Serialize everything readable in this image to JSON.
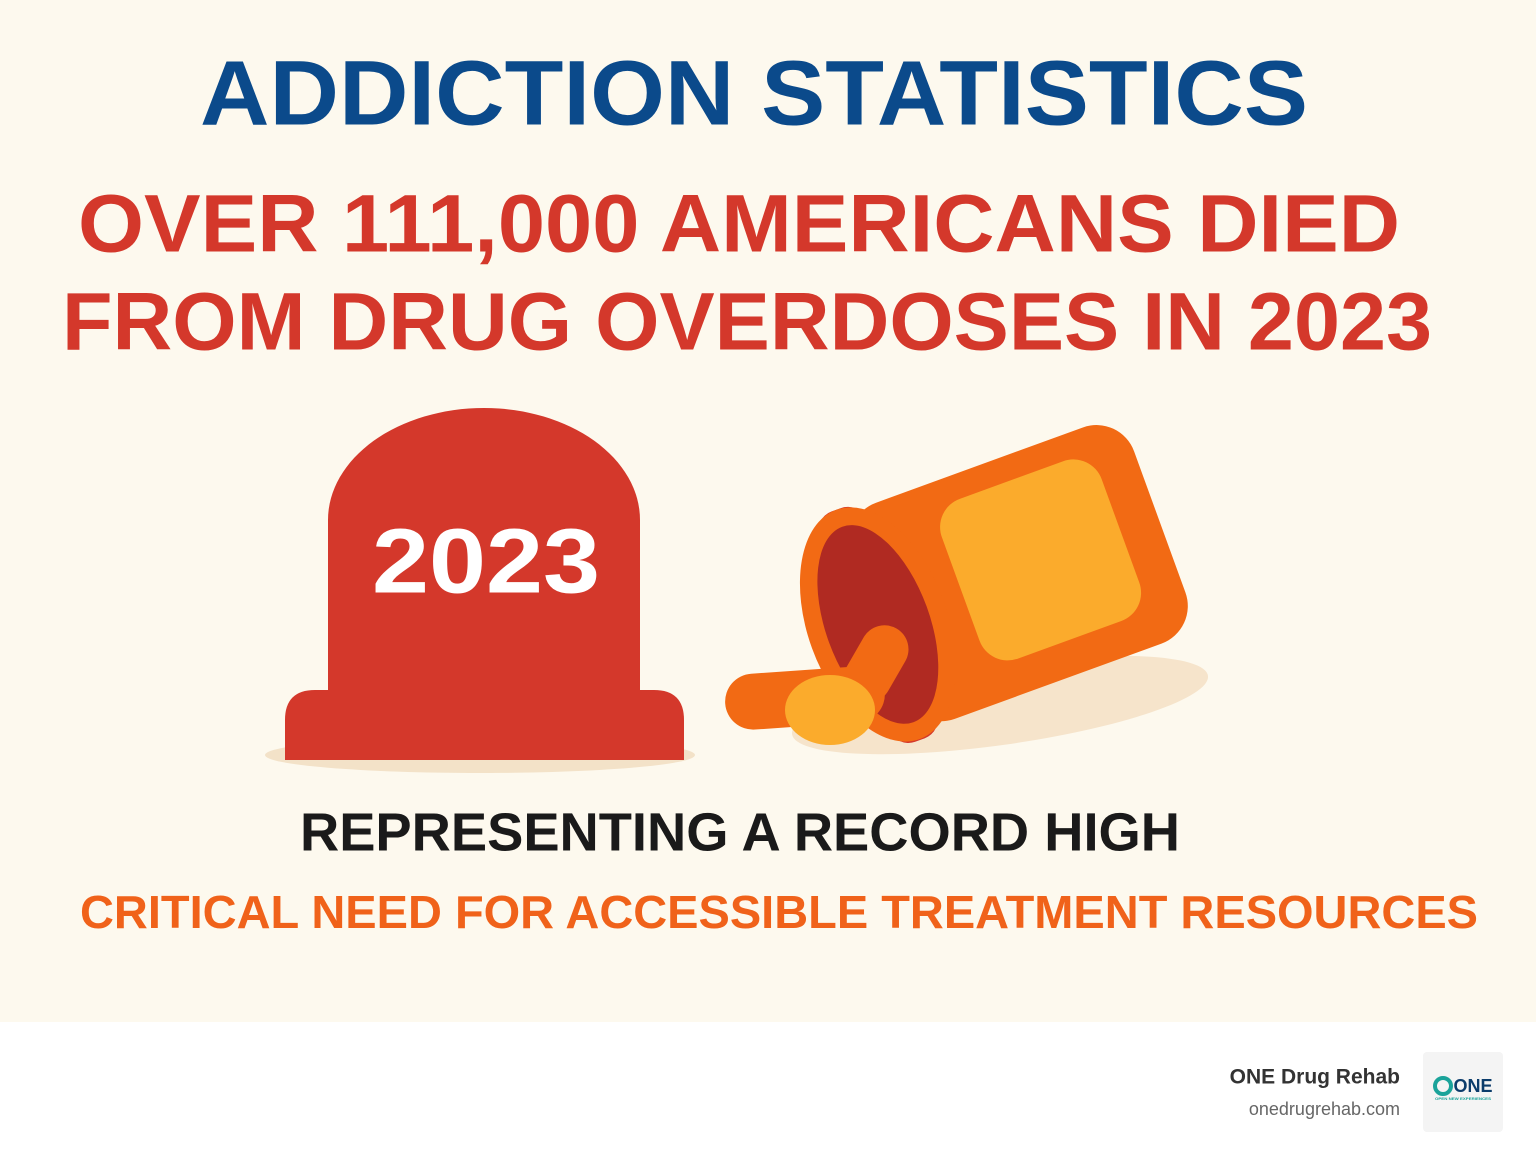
{
  "header": {
    "title": "ADDICTION STATISTICS"
  },
  "headline": {
    "lines": [
      "OVER 111,000 AMERICANS DIED",
      "FROM DRUG OVERDOSES IN 2023"
    ]
  },
  "illustration": {
    "tombstone_label": "2023"
  },
  "subheadline": "REPRESENTING A RECORD HIGH",
  "callout": "CRITICAL NEED FOR ACCESSIBLE TREATMENT RESOURCES",
  "footer": {
    "brand": "ONE Drug Rehab",
    "url": "onedrugrehab.com",
    "logo": {
      "text": "ONE",
      "tagline": "OPEN NEW EXPERIENCES"
    }
  }
}
